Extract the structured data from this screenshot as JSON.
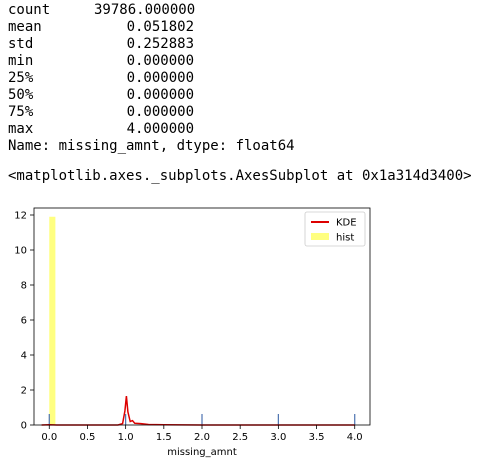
{
  "stats": [
    {
      "key": "count",
      "value": "39786.000000"
    },
    {
      "key": "mean",
      "value": "0.051802"
    },
    {
      "key": "std",
      "value": "0.252883"
    },
    {
      "key": "min",
      "value": "0.000000"
    },
    {
      "key": "25%",
      "value": "0.000000"
    },
    {
      "key": "50%",
      "value": "0.000000"
    },
    {
      "key": "75%",
      "value": "0.000000"
    },
    {
      "key": "max",
      "value": "4.000000"
    }
  ],
  "name_line": "Name: missing_amnt, dtype: float64",
  "axes_repr": "<matplotlib.axes._subplots.AxesSubplot at 0x1a314d3400>",
  "colors": {
    "kde": "#dd0000",
    "hist": "#ffff80",
    "rug": "#4c72b0"
  },
  "chart_data": {
    "type": "bar",
    "xlabel": "missing_amnt",
    "ylabel": "",
    "xlim": [
      -0.2,
      4.2
    ],
    "ylim": [
      0,
      12.4
    ],
    "xticks": [
      "0.0",
      "0.5",
      "1.0",
      "1.5",
      "2.0",
      "2.5",
      "3.0",
      "3.5",
      "4.0"
    ],
    "yticks": [
      "0",
      "2",
      "4",
      "6",
      "8",
      "10",
      "12"
    ],
    "legend": {
      "position": "top-right",
      "entries": [
        "KDE",
        "hist"
      ]
    },
    "grid": false,
    "hist": {
      "name": "hist",
      "bins": [
        {
          "x0": 0.0,
          "x1": 0.08,
          "density": 11.9
        }
      ]
    },
    "kde": {
      "name": "KDE",
      "points": [
        [
          -0.1,
          0.0
        ],
        [
          0.0,
          0.02
        ],
        [
          0.1,
          0.0
        ],
        [
          0.5,
          0.0
        ],
        [
          0.9,
          0.0
        ],
        [
          0.96,
          0.08
        ],
        [
          0.99,
          0.8
        ],
        [
          1.01,
          1.65
        ],
        [
          1.03,
          0.75
        ],
        [
          1.06,
          0.2
        ],
        [
          1.09,
          0.25
        ],
        [
          1.12,
          0.1
        ],
        [
          1.2,
          0.08
        ],
        [
          1.3,
          0.03
        ],
        [
          1.5,
          0.01
        ],
        [
          2.0,
          0.0
        ],
        [
          4.0,
          0.0
        ]
      ]
    },
    "rug": [
      0.0,
      1.0,
      2.0,
      3.0,
      4.0
    ]
  }
}
